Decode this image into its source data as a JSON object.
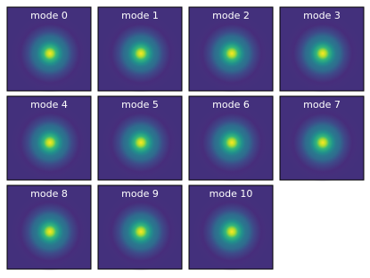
{
  "panels": [
    {
      "title": "mode 0"
    },
    {
      "title": "mode 1"
    },
    {
      "title": "mode 2"
    },
    {
      "title": "mode 3"
    },
    {
      "title": "mode 4"
    },
    {
      "title": "mode 5"
    },
    {
      "title": "mode 6"
    },
    {
      "title": "mode 7"
    },
    {
      "title": "mode 8"
    },
    {
      "title": "mode 9"
    },
    {
      "title": "mode 10"
    }
  ]
}
